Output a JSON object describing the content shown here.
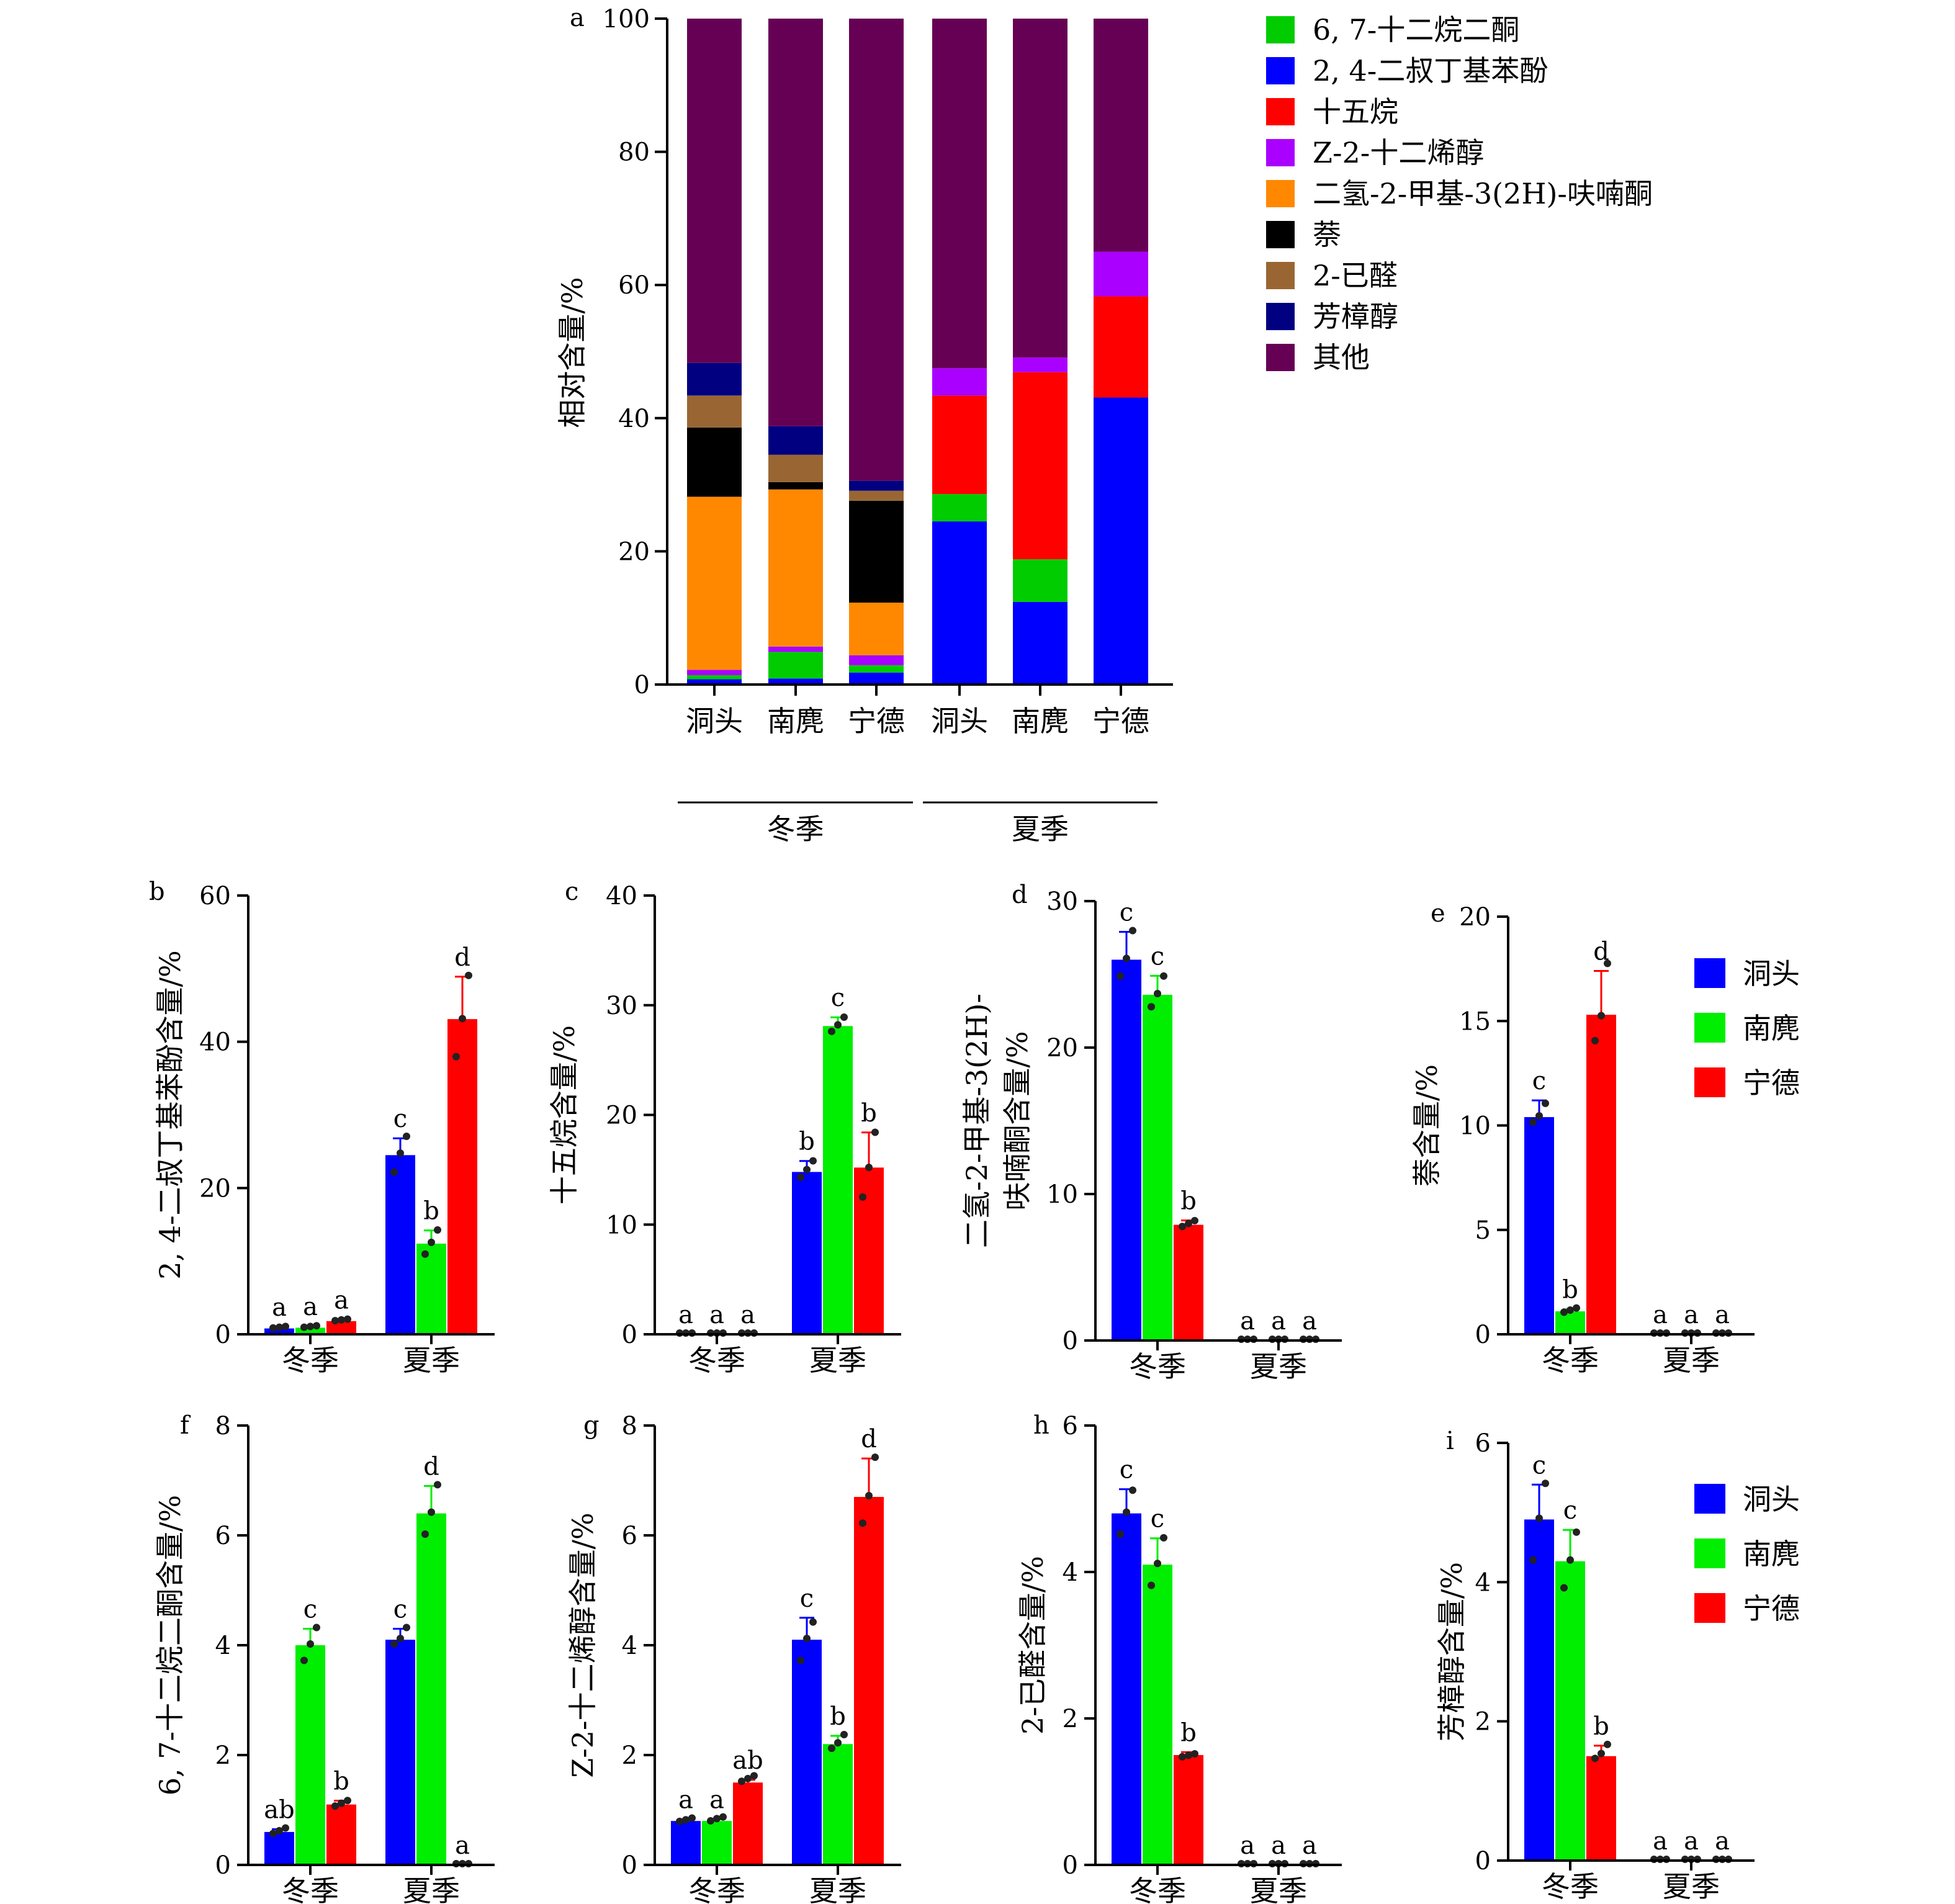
{
  "colors": {
    "6,7-十二烷二酮": "#00cc00",
    "2,4-二叔丁基苯酚": "#0000ff",
    "十五烷": "#ff0000",
    "Z-2-十二烯醇": "#aa00ff",
    "二氢-2-甲基-3(2H)-呋喃酮": "#ff8800",
    "萘": "#000000",
    "2-已醛": "#996633",
    "芳樟醇": "#000080",
    "其他": "#660055",
    "洞头": "#0000ff",
    "南麂": "#00ee00",
    "宁德": "#ff0000"
  },
  "chart_data": [
    {
      "panel": "a",
      "type": "bar",
      "stacked": true,
      "categories": [
        "洞头",
        "南麂",
        "宁德",
        "洞头",
        "南麂",
        "宁德"
      ],
      "groups": [
        {
          "label": "冬季",
          "categories": [
            0,
            1,
            2
          ]
        },
        {
          "label": "夏季",
          "categories": [
            3,
            4,
            5
          ]
        }
      ],
      "ylabel": "相对含量/%",
      "ylim": [
        0,
        100
      ],
      "yticks": [
        0,
        20,
        40,
        60,
        80,
        100
      ],
      "series": [
        {
          "name": "2, 4-二叔丁基苯酚",
          "key": "2,4-二叔丁基苯酚",
          "values": [
            0.8,
            0.9,
            1.8,
            24.5,
            12.4,
            43.1
          ]
        },
        {
          "name": "6, 7-十二烷二酮",
          "key": "6,7-十二烷二酮",
          "values": [
            0.6,
            4.0,
            1.1,
            4.1,
            6.4,
            0
          ]
        },
        {
          "name": "十五烷",
          "key": "十五烷",
          "values": [
            0,
            0,
            0,
            14.8,
            28.1,
            15.2
          ]
        },
        {
          "name": "Z-2-十二烯醇",
          "key": "Z-2-十二烯醇",
          "values": [
            0.8,
            0.8,
            1.5,
            4.1,
            2.2,
            6.7
          ]
        },
        {
          "name": "二氢-2-甲基-3(2H)-呋喃酮",
          "key": "二氢-2-甲基-3(2H)-呋喃酮",
          "values": [
            26.0,
            23.6,
            7.9,
            0,
            0,
            0
          ]
        },
        {
          "name": "萘",
          "key": "萘",
          "values": [
            10.4,
            1.1,
            15.3,
            0,
            0,
            0
          ]
        },
        {
          "name": "2-已醛",
          "key": "2-已醛",
          "values": [
            4.8,
            4.1,
            1.5,
            0,
            0,
            0
          ]
        },
        {
          "name": "芳樟醇",
          "key": "芳樟醇",
          "values": [
            4.9,
            4.3,
            1.5,
            0,
            0,
            0
          ]
        },
        {
          "name": "其他",
          "key": "其他",
          "values": [
            51.7,
            61.2,
            69.4,
            52.5,
            50.9,
            35.0
          ]
        }
      ],
      "legend": {
        "placement": "right",
        "entries": [
          "6, 7-十二烷二酮",
          "2, 4-二叔丁基苯酚",
          "十五烷",
          "Z-2-十二烯醇",
          "二氢-2-甲基-3(2H)-呋喃酮",
          "萘",
          "2-已醛",
          "芳樟醇",
          "其他"
        ],
        "keys": [
          "6,7-十二烷二酮",
          "2,4-二叔丁基苯酚",
          "十五烷",
          "Z-2-十二烯醇",
          "二氢-2-甲基-3(2H)-呋喃酮",
          "萘",
          "2-已醛",
          "芳樟醇",
          "其他"
        ]
      }
    },
    {
      "panel": "b",
      "type": "bar",
      "ylabel": [
        "2, 4-二叔丁基苯酚含量/%"
      ],
      "ylim": [
        0,
        60
      ],
      "yticks": [
        0,
        20,
        40,
        60
      ],
      "categories": [
        "冬季",
        "夏季"
      ],
      "series": [
        {
          "name": "洞头",
          "values": [
            0.8,
            24.5
          ],
          "errors": [
            0.2,
            2.3
          ],
          "points": [
            [
              0.7,
              0.8,
              0.9
            ],
            [
              22.0,
              24.6,
              26.9
            ]
          ],
          "letters": [
            "a",
            "c"
          ]
        },
        {
          "name": "南麂",
          "values": [
            0.9,
            12.4
          ],
          "errors": [
            0.2,
            1.8
          ],
          "points": [
            [
              0.8,
              0.9,
              1.0
            ],
            [
              10.8,
              12.4,
              14.1
            ]
          ],
          "letters": [
            "a",
            "b"
          ]
        },
        {
          "name": "宁德",
          "values": [
            1.8,
            43.1
          ],
          "errors": [
            0.2,
            5.8
          ],
          "points": [
            [
              1.7,
              1.8,
              1.9
            ],
            [
              37.8,
              43.0,
              48.9
            ]
          ],
          "letters": [
            "a",
            "d"
          ]
        }
      ]
    },
    {
      "panel": "c",
      "type": "bar",
      "ylabel": [
        "十五烷含量/%"
      ],
      "ylim": [
        0,
        40
      ],
      "yticks": [
        0,
        10,
        20,
        30,
        40
      ],
      "categories": [
        "冬季",
        "夏季"
      ],
      "series": [
        {
          "name": "洞头",
          "values": [
            0,
            14.8
          ],
          "errors": [
            0,
            1.0
          ],
          "points": [
            [
              0,
              0,
              0
            ],
            [
              14.2,
              14.9,
              15.7
            ]
          ],
          "letters": [
            "a",
            "b"
          ]
        },
        {
          "name": "南麂",
          "values": [
            0,
            28.1
          ],
          "errors": [
            0,
            0.8
          ],
          "points": [
            [
              0,
              0,
              0
            ],
            [
              27.5,
              28.1,
              28.8
            ]
          ],
          "letters": [
            "a",
            "c"
          ]
        },
        {
          "name": "宁德",
          "values": [
            0,
            15.2
          ],
          "errors": [
            0,
            3.2
          ],
          "points": [
            [
              0,
              0,
              0
            ],
            [
              12.4,
              15.1,
              18.3
            ]
          ],
          "letters": [
            "a",
            "b"
          ]
        }
      ]
    },
    {
      "panel": "d",
      "type": "bar",
      "ylabel": [
        "二氢-2-甲基-3(2H)-",
        "呋喃酮含量/%"
      ],
      "ylim": [
        0,
        30
      ],
      "yticks": [
        0,
        10,
        20,
        30
      ],
      "categories": [
        "冬季",
        "夏季"
      ],
      "series": [
        {
          "name": "洞头",
          "values": [
            26.0,
            0
          ],
          "errors": [
            1.9,
            0
          ],
          "points": [
            [
              24.8,
              26.0,
              27.9
            ],
            [
              0,
              0,
              0
            ]
          ],
          "letters": [
            "c",
            "a"
          ]
        },
        {
          "name": "南麂",
          "values": [
            23.6,
            0
          ],
          "errors": [
            1.3,
            0
          ],
          "points": [
            [
              22.7,
              23.6,
              24.8
            ],
            [
              0,
              0,
              0
            ]
          ],
          "letters": [
            "c",
            "a"
          ]
        },
        {
          "name": "宁德",
          "values": [
            7.9,
            0
          ],
          "errors": [
            0.3,
            0
          ],
          "points": [
            [
              7.7,
              7.9,
              8.1
            ],
            [
              0,
              0,
              0
            ]
          ],
          "letters": [
            "b",
            "a"
          ]
        }
      ]
    },
    {
      "panel": "e",
      "type": "bar",
      "ylabel": [
        "萘含量/%"
      ],
      "ylim": [
        0,
        20
      ],
      "yticks": [
        0,
        5,
        10,
        15,
        20
      ],
      "categories": [
        "冬季",
        "夏季"
      ],
      "series": [
        {
          "name": "洞头",
          "values": [
            10.4,
            0
          ],
          "errors": [
            0.8,
            0
          ],
          "points": [
            [
              10.1,
              10.4,
              11.0
            ],
            [
              0,
              0,
              0
            ]
          ],
          "letters": [
            "c",
            "a"
          ]
        },
        {
          "name": "南麂",
          "values": [
            1.1,
            0
          ],
          "errors": [
            0.1,
            0
          ],
          "points": [
            [
              1.0,
              1.1,
              1.2
            ],
            [
              0,
              0,
              0
            ]
          ],
          "letters": [
            "b",
            "a"
          ]
        },
        {
          "name": "宁德",
          "values": [
            15.3,
            0
          ],
          "errors": [
            2.1,
            0
          ],
          "points": [
            [
              14.0,
              15.2,
              17.7
            ],
            [
              0,
              0,
              0
            ]
          ],
          "letters": [
            "d",
            "a"
          ]
        }
      ],
      "legend": {
        "placement": "right",
        "entries": [
          "洞头",
          "南麂",
          "宁德"
        ]
      }
    },
    {
      "panel": "f",
      "type": "bar",
      "ylabel": [
        "6, 7-十二烷二酮含量/%"
      ],
      "ylim": [
        0,
        8
      ],
      "yticks": [
        0,
        2,
        4,
        6,
        8
      ],
      "categories": [
        "冬季",
        "夏季"
      ],
      "series": [
        {
          "name": "洞头",
          "values": [
            0.6,
            4.1
          ],
          "errors": [
            0.05,
            0.2
          ],
          "points": [
            [
              0.55,
              0.6,
              0.65
            ],
            [
              4.0,
              4.1,
              4.3
            ]
          ],
          "letters": [
            "ab",
            "c"
          ]
        },
        {
          "name": "南麂",
          "values": [
            4.0,
            6.4
          ],
          "errors": [
            0.3,
            0.5
          ],
          "points": [
            [
              3.7,
              4.0,
              4.3
            ],
            [
              6.0,
              6.4,
              6.9
            ]
          ],
          "letters": [
            "c",
            "d"
          ]
        },
        {
          "name": "宁德",
          "values": [
            1.1,
            0
          ],
          "errors": [
            0.07,
            0
          ],
          "points": [
            [
              1.05,
              1.1,
              1.15
            ],
            [
              0,
              0,
              0
            ]
          ],
          "letters": [
            "b",
            "a"
          ]
        }
      ]
    },
    {
      "panel": "g",
      "type": "bar",
      "ylabel": [
        "Z-2-十二烯醇含量/%"
      ],
      "ylim": [
        0,
        8
      ],
      "yticks": [
        0,
        2,
        4,
        6,
        8
      ],
      "categories": [
        "冬季",
        "夏季"
      ],
      "series": [
        {
          "name": "洞头",
          "values": [
            0.8,
            4.1
          ],
          "errors": [
            0.03,
            0.4
          ],
          "points": [
            [
              0.77,
              0.8,
              0.83
            ],
            [
              3.7,
              4.1,
              4.4
            ]
          ],
          "letters": [
            "a",
            "c"
          ]
        },
        {
          "name": "南麂",
          "values": [
            0.8,
            2.2
          ],
          "errors": [
            0.03,
            0.15
          ],
          "points": [
            [
              0.78,
              0.82,
              0.85
            ],
            [
              2.1,
              2.2,
              2.35
            ]
          ],
          "letters": [
            "a",
            "b"
          ]
        },
        {
          "name": "宁德",
          "values": [
            1.5,
            6.7
          ],
          "errors": [
            0.05,
            0.7
          ],
          "points": [
            [
              1.5,
              1.55,
              1.6
            ],
            [
              6.2,
              6.7,
              7.4
            ]
          ],
          "letters": [
            "ab",
            "d"
          ]
        }
      ]
    },
    {
      "panel": "h",
      "type": "bar",
      "ylabel": [
        "2-已醛含量/%"
      ],
      "ylim": [
        0,
        6
      ],
      "yticks": [
        0,
        2,
        4,
        6
      ],
      "categories": [
        "冬季",
        "夏季"
      ],
      "series": [
        {
          "name": "洞头",
          "values": [
            4.8,
            0
          ],
          "errors": [
            0.33,
            0
          ],
          "points": [
            [
              4.5,
              4.8,
              5.1
            ],
            [
              0,
              0,
              0
            ]
          ],
          "letters": [
            "c",
            "a"
          ]
        },
        {
          "name": "南麂",
          "values": [
            4.1,
            0
          ],
          "errors": [
            0.36,
            0
          ],
          "points": [
            [
              3.8,
              4.1,
              4.45
            ],
            [
              0,
              0,
              0
            ]
          ],
          "letters": [
            "c",
            "a"
          ]
        },
        {
          "name": "宁德",
          "values": [
            1.5,
            0
          ],
          "errors": [
            0.04,
            0
          ],
          "points": [
            [
              1.46,
              1.48,
              1.5
            ],
            [
              0,
              0,
              0
            ]
          ],
          "letters": [
            "b",
            "a"
          ]
        }
      ]
    },
    {
      "panel": "i",
      "type": "bar",
      "ylabel": [
        "芳樟醇含量/%"
      ],
      "ylim": [
        0,
        6
      ],
      "yticks": [
        0,
        2,
        4,
        6
      ],
      "categories": [
        "冬季",
        "夏季"
      ],
      "series": [
        {
          "name": "洞头",
          "values": [
            4.9,
            0
          ],
          "errors": [
            0.5,
            0
          ],
          "points": [
            [
              4.3,
              4.9,
              5.4
            ],
            [
              0,
              0,
              0
            ]
          ],
          "letters": [
            "c",
            "a"
          ]
        },
        {
          "name": "南麂",
          "values": [
            4.3,
            0
          ],
          "errors": [
            0.45,
            0
          ],
          "points": [
            [
              3.9,
              4.3,
              4.7
            ],
            [
              0,
              0,
              0
            ]
          ],
          "letters": [
            "c",
            "a"
          ]
        },
        {
          "name": "宁德",
          "values": [
            1.5,
            0
          ],
          "errors": [
            0.15,
            0
          ],
          "points": [
            [
              1.45,
              1.52,
              1.65
            ],
            [
              0,
              0,
              0
            ]
          ],
          "letters": [
            "b",
            "a"
          ]
        }
      ],
      "legend": {
        "placement": "right",
        "entries": [
          "洞头",
          "南麂",
          "宁德"
        ]
      }
    }
  ]
}
